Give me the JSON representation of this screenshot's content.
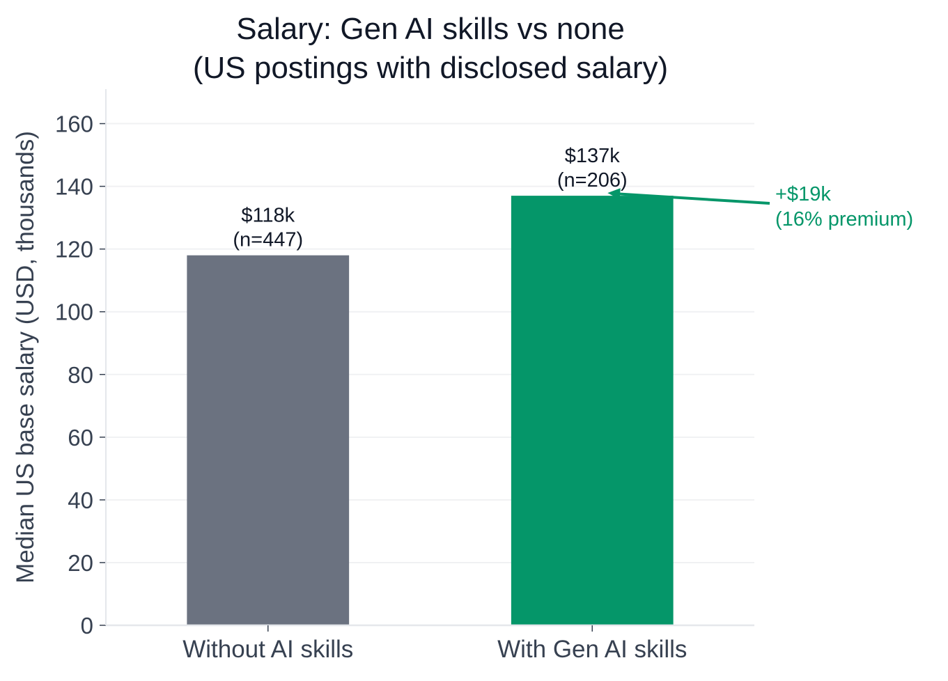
{
  "chart_data": {
    "type": "bar",
    "title": "Salary: Gen AI skills vs none",
    "subtitle": "(US postings with disclosed salary)",
    "ylabel": "Median US base salary (USD, thousands)",
    "xlabel": "",
    "categories": [
      "Without AI skills",
      "With Gen AI skills"
    ],
    "values": [
      118,
      137
    ],
    "data_labels": [
      "$118k",
      "$137k"
    ],
    "sample_labels": [
      "(n=447)",
      "(n=206)"
    ],
    "bar_colors": [
      "#6b7280",
      "#059669"
    ],
    "ylim": [
      0,
      171
    ],
    "yticks": [
      0,
      20,
      40,
      60,
      80,
      100,
      120,
      140,
      160
    ],
    "grid": true,
    "annotation": {
      "line1": "+$19k",
      "line2": "(16% premium)",
      "color": "#059669",
      "points_to_category": "With Gen AI skills"
    }
  }
}
